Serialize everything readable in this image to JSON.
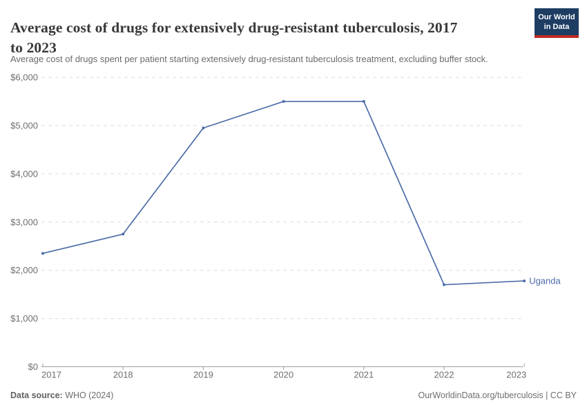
{
  "header": {
    "title": "Average cost of drugs for extensively drug-resistant tuberculosis, 2017 to 2023",
    "logo": {
      "line1": "Our World",
      "line2": "in Data"
    }
  },
  "subtitle": "Average cost of drugs spent per patient starting extensively drug-resistant tuberculosis treatment, excluding buffer stock.",
  "footer": {
    "source_label": "Data source:",
    "source_value": " WHO (2024)",
    "credit": "OurWorldinData.org/tuberculosis | CC BY"
  },
  "colors": {
    "line": "#4d6ca8",
    "grid": "#dcdcdc",
    "axis": "#9c9c9c",
    "tick_text": "#6e6e6e",
    "title_text": "#383838",
    "logo_bg": "#1d3d63",
    "logo_red": "#be2d23"
  },
  "chart_data": {
    "type": "line",
    "title": "Average cost of drugs for extensively drug-resistant tuberculosis, 2017 to 2023",
    "subtitle": "Average cost of drugs spent per patient starting extensively drug-resistant tuberculosis treatment, excluding buffer stock.",
    "x": [
      2017,
      2018,
      2019,
      2020,
      2021,
      2022,
      2023
    ],
    "series": [
      {
        "name": "Uganda",
        "values": [
          2350,
          2750,
          4950,
          5500,
          5500,
          1700,
          1780
        ]
      }
    ],
    "xlabel": "",
    "ylabel": "",
    "ylim": [
      0,
      6000
    ],
    "ytick_step": 1000,
    "y_tick_format": "$#,##0",
    "grid": "horizontal-dashed",
    "legend_position": "end-of-line-label"
  }
}
